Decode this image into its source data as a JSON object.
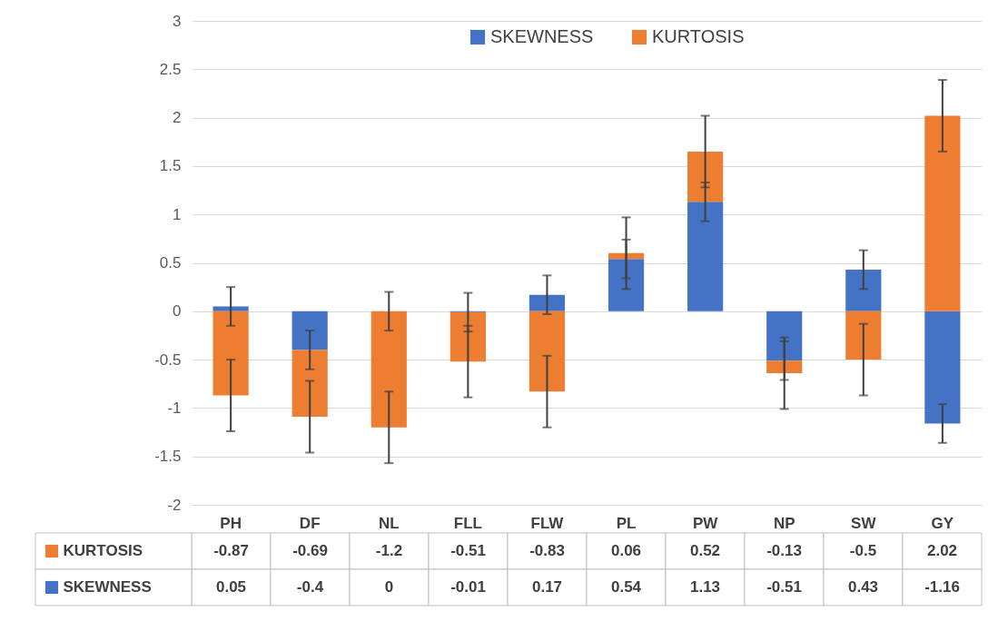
{
  "chart_data": {
    "type": "bar",
    "stacked": true,
    "categories": [
      "PH",
      "DF",
      "NL",
      "FLL",
      "FLW",
      "PL",
      "PW",
      "NP",
      "SW",
      "GY"
    ],
    "series": [
      {
        "name": "SKEWNESS",
        "color": "#4472c4",
        "values": [
          0.05,
          -0.4,
          0,
          -0.01,
          0.17,
          0.54,
          1.13,
          -0.51,
          0.43,
          -1.16
        ],
        "errors": [
          0.2,
          0.2,
          0.2,
          0.2,
          0.2,
          0.2,
          0.2,
          0.2,
          0.2,
          0.2
        ]
      },
      {
        "name": "KURTOSIS",
        "color": "#ed7d31",
        "values": [
          -0.87,
          -0.69,
          -1.2,
          -0.51,
          -0.83,
          0.06,
          0.52,
          -0.13,
          -0.5,
          2.02
        ],
        "errors": [
          0.37,
          0.37,
          0.37,
          0.37,
          0.37,
          0.37,
          0.37,
          0.37,
          0.37,
          0.37
        ]
      }
    ],
    "ylim": [
      -2,
      3
    ],
    "yticks": [
      -2,
      -1.5,
      -1,
      -0.5,
      0,
      0.5,
      1,
      1.5,
      2,
      2.5,
      3
    ],
    "grid": "y",
    "legend": "top",
    "data_labels": true
  }
}
